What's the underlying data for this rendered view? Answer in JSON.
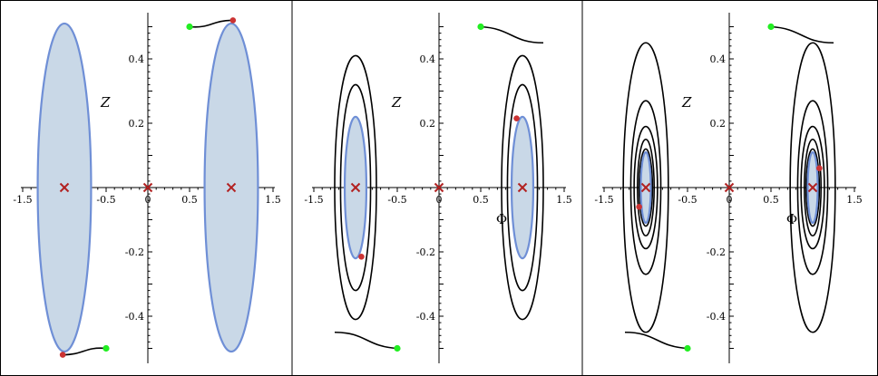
{
  "figure": {
    "xlabel": "Φ",
    "ylabel": "Z"
  },
  "chart_data": [
    {
      "type": "line",
      "panel": 1,
      "xlabel": "Φ",
      "ylabel": "Z",
      "xlim": [
        -1.5,
        1.5
      ],
      "ylim": [
        -0.55,
        0.55
      ],
      "x_ticks": [
        -1.5,
        -1,
        -0.5,
        0,
        0.5,
        1,
        1.5
      ],
      "x_tick_labels": [
        "-1.5",
        "-1",
        "-0.5",
        "0",
        "0.5",
        "1",
        "1.5"
      ],
      "y_ticks": [
        0.4,
        0.2,
        -0.2,
        -0.4
      ],
      "y_tick_labels": [
        "0.4",
        "0.2",
        "-0.2",
        "-0.4"
      ],
      "critical_points": [
        [
          -1,
          0
        ],
        [
          0,
          0
        ],
        [
          1,
          0
        ]
      ],
      "shaded_ellipses": [
        {
          "cx": -1,
          "cy": 0,
          "rx": 0.32,
          "ry": 0.51
        },
        {
          "cx": 1,
          "cy": 0,
          "rx": 0.32,
          "ry": 0.51
        }
      ],
      "orbits": [],
      "connectors": [
        {
          "start": [
            0.5,
            0.5
          ],
          "end": [
            1.02,
            0.52
          ]
        },
        {
          "start": [
            -0.5,
            -0.5
          ],
          "end": [
            -1.02,
            -0.52
          ]
        }
      ],
      "start_points": [
        [
          0.5,
          0.5
        ],
        [
          -0.5,
          -0.5
        ]
      ],
      "end_points": [
        [
          1.02,
          0.52
        ],
        [
          -1.02,
          -0.52
        ]
      ]
    },
    {
      "type": "line",
      "panel": 2,
      "xlabel": "Φ",
      "ylabel": "Z",
      "xlim": [
        -1.5,
        1.5
      ],
      "ylim": [
        -0.55,
        0.55
      ],
      "x_ticks": [
        -1.5,
        -1,
        -0.5,
        0,
        0.5,
        1,
        1.5
      ],
      "x_tick_labels": [
        "-1.5",
        "-1",
        "-0.5",
        "0",
        "0.5",
        "1",
        "1.5"
      ],
      "y_ticks": [
        0.4,
        0.2,
        -0.2,
        -0.4
      ],
      "y_tick_labels": [
        "0.4",
        "0.2",
        "-0.2",
        "-0.4"
      ],
      "critical_points": [
        [
          -1,
          0
        ],
        [
          0,
          0
        ],
        [
          1,
          0
        ]
      ],
      "shaded_ellipses": [
        {
          "cx": -1,
          "cy": 0,
          "rx": 0.13,
          "ry": 0.22
        },
        {
          "cx": 1,
          "cy": 0,
          "rx": 0.13,
          "ry": 0.22
        }
      ],
      "orbits": [
        {
          "cx": -1,
          "cy": 0,
          "rx": 0.25,
          "ry": 0.41
        },
        {
          "cx": -1,
          "cy": 0,
          "rx": 0.18,
          "ry": 0.32
        },
        {
          "cx": 1,
          "cy": 0,
          "rx": 0.25,
          "ry": 0.41
        },
        {
          "cx": 1,
          "cy": 0,
          "rx": 0.18,
          "ry": 0.32
        }
      ],
      "connectors": [
        {
          "start": [
            0.5,
            0.5
          ],
          "end": [
            1.25,
            0.45
          ]
        },
        {
          "start": [
            -0.5,
            -0.5
          ],
          "end": [
            -1.25,
            -0.45
          ]
        }
      ],
      "start_points": [
        [
          0.5,
          0.5
        ],
        [
          -0.5,
          -0.5
        ]
      ],
      "end_points": [
        [
          0.93,
          0.215
        ],
        [
          -0.93,
          -0.215
        ]
      ]
    },
    {
      "type": "line",
      "panel": 3,
      "xlabel": "Φ",
      "ylabel": "Z",
      "xlim": [
        -1.5,
        1.5
      ],
      "ylim": [
        -0.55,
        0.55
      ],
      "x_ticks": [
        -1.5,
        -1,
        -0.5,
        0,
        0.5,
        1,
        1.5
      ],
      "x_tick_labels": [
        "-1.5",
        "-1",
        "-0.5",
        "0",
        "0.5",
        "1",
        "1.5"
      ],
      "y_ticks": [
        0.4,
        0.2,
        -0.2,
        -0.4
      ],
      "y_tick_labels": [
        "0.4",
        "0.2",
        "-0.2",
        "-0.4"
      ],
      "critical_points": [
        [
          -1,
          0
        ],
        [
          0,
          0
        ],
        [
          1,
          0
        ]
      ],
      "shaded_ellipses": [
        {
          "cx": -1,
          "cy": 0,
          "rx": 0.06,
          "ry": 0.11
        },
        {
          "cx": 1,
          "cy": 0,
          "rx": 0.06,
          "ry": 0.11
        }
      ],
      "orbits": [
        {
          "cx": -1,
          "cy": 0,
          "rx": 0.27,
          "ry": 0.45
        },
        {
          "cx": -1,
          "cy": 0,
          "rx": 0.18,
          "ry": 0.27
        },
        {
          "cx": -1,
          "cy": 0,
          "rx": 0.14,
          "ry": 0.19
        },
        {
          "cx": -1,
          "cy": 0,
          "rx": 0.1,
          "ry": 0.15
        },
        {
          "cx": -1,
          "cy": 0,
          "rx": 0.08,
          "ry": 0.12
        },
        {
          "cx": 1,
          "cy": 0,
          "rx": 0.27,
          "ry": 0.45
        },
        {
          "cx": 1,
          "cy": 0,
          "rx": 0.18,
          "ry": 0.27
        },
        {
          "cx": 1,
          "cy": 0,
          "rx": 0.14,
          "ry": 0.19
        },
        {
          "cx": 1,
          "cy": 0,
          "rx": 0.1,
          "ry": 0.15
        },
        {
          "cx": 1,
          "cy": 0,
          "rx": 0.08,
          "ry": 0.12
        }
      ],
      "connectors": [
        {
          "start": [
            0.5,
            0.5
          ],
          "end": [
            1.25,
            0.45
          ]
        },
        {
          "start": [
            -0.5,
            -0.5
          ],
          "end": [
            -1.25,
            -0.45
          ]
        }
      ],
      "start_points": [
        [
          0.5,
          0.5
        ],
        [
          -0.5,
          -0.5
        ]
      ],
      "end_points": [
        [
          1.08,
          0.06
        ],
        [
          -1.08,
          -0.06
        ]
      ]
    }
  ],
  "colors": {
    "region_fill": "#c9d8e7",
    "region_stroke": "#6f8fd6",
    "orbit": "#000000",
    "critical_marker": "#b22222",
    "start_point": "#22ee22",
    "end_point": "#cc3333"
  },
  "icons": {
    "critical_point": "x-mark-icon",
    "start_point": "green-dot-icon",
    "end_point": "red-dot-icon"
  }
}
